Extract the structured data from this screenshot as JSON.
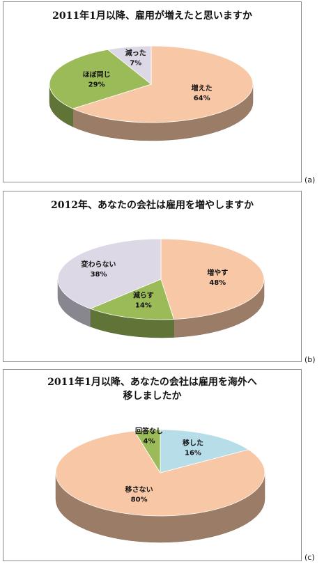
{
  "panels": [
    {
      "id": "a",
      "title_lines": [
        "2011年1月以降、雇用が増えたと思いますか"
      ],
      "panel_label": "(a)"
    },
    {
      "id": "b",
      "title_lines": [
        "2012年、あなたの会社は雇用を増やしますか"
      ],
      "panel_label": "(b)"
    },
    {
      "id": "c",
      "title_lines": [
        "2011年1月以降、あなたの会社は雇用を海外へ",
        "移しましたか"
      ],
      "panel_label": "(c)"
    }
  ],
  "chart_data": [
    {
      "type": "pie",
      "title": "2011年1月以降、雇用が増えたと思いますか",
      "categories": [
        "増えた",
        "ほぼ同じ",
        "減った"
      ],
      "values": [
        64,
        29,
        7
      ],
      "value_labels": [
        "64%",
        "29%",
        "7%"
      ],
      "colors": [
        "#f8c8a6",
        "#9bbb59",
        "#dcd8e6"
      ]
    },
    {
      "type": "pie",
      "title": "2012年、あなたの会社は雇用を増やしますか",
      "categories": [
        "増やす",
        "減らす",
        "変わらない"
      ],
      "values": [
        48,
        14,
        38
      ],
      "value_labels": [
        "48%",
        "14%",
        "38%"
      ],
      "colors": [
        "#f8c8a6",
        "#9bbb59",
        "#dcd8e6"
      ]
    },
    {
      "type": "pie",
      "title": "2011年1月以降、あなたの会社は雇用を海外へ移しましたか",
      "categories": [
        "移した",
        "移さない",
        "回答なし"
      ],
      "values": [
        16,
        80,
        4
      ],
      "value_labels": [
        "16%",
        "80%",
        "4%"
      ],
      "colors": [
        "#b7dde8",
        "#f8c8a6",
        "#9bbb59"
      ]
    }
  ]
}
